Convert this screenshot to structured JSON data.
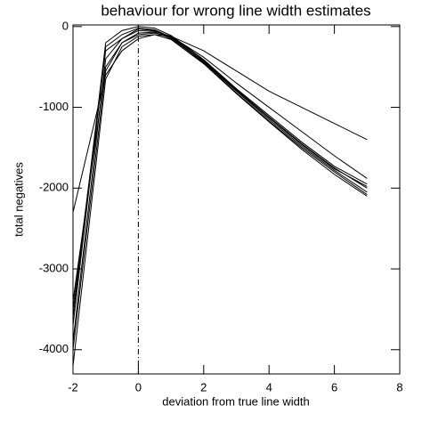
{
  "chart_data": {
    "type": "line",
    "title": "behaviour for wrong line width estimates",
    "x_label": "deviation from true line width",
    "y_label": "total negatives",
    "x": [
      -2,
      -1,
      -0.5,
      0,
      0.5,
      1,
      2,
      3,
      4,
      5,
      6,
      7
    ],
    "series": [
      {
        "color": "#000000",
        "values": [
          -2300,
          -600,
          -300,
          -150,
          -100,
          -120,
          -300,
          -550,
          -800,
          -1000,
          -1200,
          -1400
        ]
      },
      {
        "color": "#000000",
        "values": [
          -3400,
          -500,
          -200,
          -100,
          -80,
          -120,
          -380,
          -700,
          -1000,
          -1300,
          -1600,
          -1880
        ]
      },
      {
        "color": "#000000",
        "values": [
          -3500,
          -300,
          -150,
          -50,
          -60,
          -120,
          -420,
          -780,
          -1120,
          -1450,
          -1750,
          -2000
        ]
      },
      {
        "color": "#000000",
        "values": [
          -3700,
          -250,
          -100,
          -20,
          -40,
          -130,
          -440,
          -800,
          -1150,
          -1480,
          -1780,
          -2050
        ]
      },
      {
        "color": "#000000",
        "values": [
          -3900,
          -400,
          -150,
          -30,
          -50,
          -140,
          -450,
          -820,
          -1170,
          -1500,
          -1800,
          -2080
        ]
      },
      {
        "color": "#000000",
        "values": [
          -4000,
          -550,
          -200,
          -80,
          -70,
          -150,
          -430,
          -790,
          -1130,
          -1460,
          -1760,
          -1980
        ]
      },
      {
        "color": "#000000",
        "values": [
          -4200,
          -650,
          -250,
          -120,
          -100,
          -160,
          -460,
          -830,
          -1180,
          -1520,
          -1830,
          -2100
        ]
      },
      {
        "color": "#000000",
        "values": [
          -3600,
          -200,
          -50,
          0,
          -20,
          -110,
          -410,
          -770,
          -1100,
          -1430,
          -1730,
          -1950
        ]
      }
    ],
    "xlim": [
      -2,
      8
    ],
    "xticks": [
      -2,
      0,
      2,
      4,
      6,
      8
    ],
    "ylim": [
      -4300,
      20
    ],
    "yticks": [
      -4000,
      -3000,
      -2000,
      -1000,
      0
    ],
    "vline": 0
  }
}
